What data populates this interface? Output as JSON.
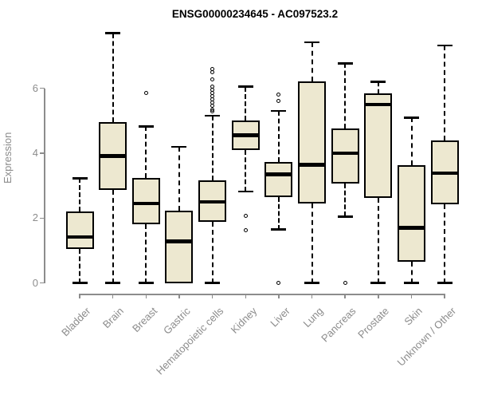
{
  "chart_data": {
    "type": "boxplot",
    "title": "ENSG00000234645 - AC097523.2",
    "xlabel": "",
    "ylabel": "Expression",
    "yticks": [
      0,
      2,
      4,
      6
    ],
    "ylim": [
      0,
      6
    ],
    "ydata_max": 7.7,
    "grid": false,
    "legend": "none",
    "categories": [
      "Bladder",
      "Brain",
      "Breast",
      "Gastric",
      "Hematopoietic cells",
      "Kidney",
      "Liver",
      "Lung",
      "Pancreas",
      "Prostate",
      "Skin",
      "Unknown / Other"
    ],
    "series": [
      {
        "name": "Bladder",
        "low": 0,
        "q1": 1.05,
        "median": 1.42,
        "q3": 2.2,
        "high": 3.23,
        "outliers": []
      },
      {
        "name": "Brain",
        "low": 0,
        "q1": 2.88,
        "median": 3.92,
        "q3": 4.97,
        "high": 7.7,
        "outliers": []
      },
      {
        "name": "Breast",
        "low": 0,
        "q1": 1.8,
        "median": 2.45,
        "q3": 3.23,
        "high": 4.83,
        "outliers": [
          5.85
        ]
      },
      {
        "name": "Gastric",
        "low": 0,
        "q1": 0,
        "median": 1.28,
        "q3": 2.22,
        "high": 4.2,
        "outliers": []
      },
      {
        "name": "Hematopoietic cells",
        "low": 0,
        "q1": 1.88,
        "median": 2.5,
        "q3": 3.17,
        "high": 5.15,
        "outliers": [
          6.6,
          6.5,
          6.28,
          6.05,
          5.95,
          5.85,
          5.75,
          5.65,
          5.55,
          5.45,
          5.35,
          5.28
        ]
      },
      {
        "name": "Kidney",
        "low": 2.82,
        "q1": 4.1,
        "median": 4.55,
        "q3": 5.0,
        "high": 6.05,
        "outliers": [
          2.08,
          1.62
        ]
      },
      {
        "name": "Liver",
        "low": 1.65,
        "q1": 2.65,
        "median": 3.35,
        "q3": 3.72,
        "high": 5.3,
        "outliers": [
          5.8,
          5.6,
          0
        ]
      },
      {
        "name": "Lung",
        "low": 0,
        "q1": 2.44,
        "median": 3.65,
        "q3": 6.22,
        "high": 7.42,
        "outliers": []
      },
      {
        "name": "Pancreas",
        "low": 2.05,
        "q1": 3.06,
        "median": 4.0,
        "q3": 4.76,
        "high": 6.77,
        "outliers": [
          0
        ]
      },
      {
        "name": "Prostate",
        "low": 0,
        "q1": 2.63,
        "median": 5.5,
        "q3": 5.85,
        "high": 6.2,
        "outliers": []
      },
      {
        "name": "Skin",
        "low": 0,
        "q1": 0.65,
        "median": 1.7,
        "q3": 3.62,
        "high": 5.1,
        "outliers": []
      },
      {
        "name": "Unknown / Other",
        "low": 0,
        "q1": 2.42,
        "median": 3.39,
        "q3": 4.4,
        "high": 7.32,
        "outliers": []
      }
    ]
  },
  "colors": {
    "box_fill": "#EDE8D0",
    "box_stroke": "#000000",
    "axis": "#8c8c8c",
    "title_text": "#000000",
    "background": "#ffffff"
  }
}
